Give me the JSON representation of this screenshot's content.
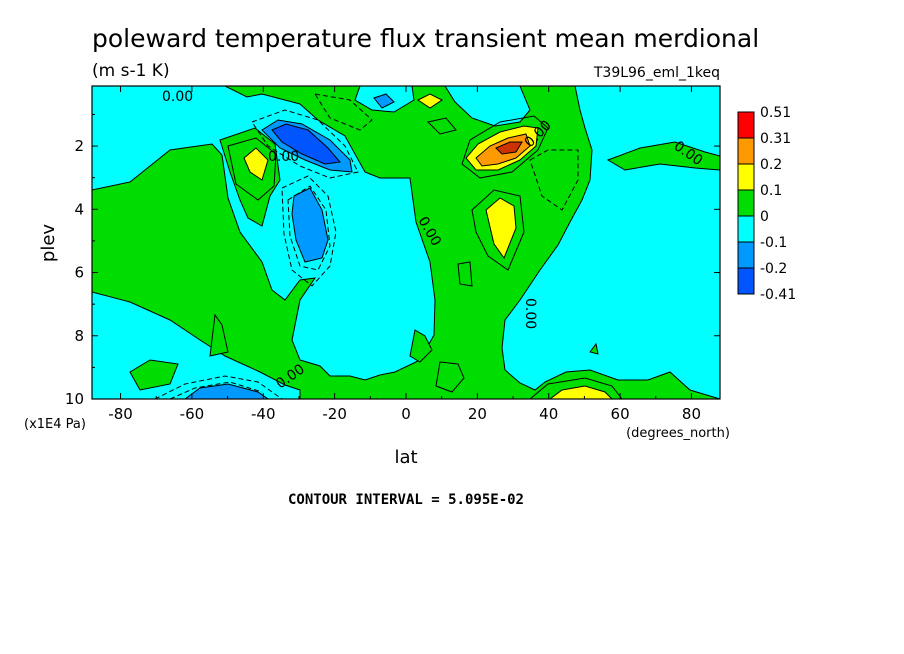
{
  "chart_data": {
    "type": "heatmap",
    "title": "poleward temperature flux transient mean merdional",
    "subtitle": "(m s-1 K)",
    "experiment": "T39L96_eml_1keq",
    "xlabel": "lat",
    "xunits": "(degrees_north)",
    "ylabel": "plev",
    "yunits": "(x1E4 Pa)",
    "xlim": [
      -88,
      88
    ],
    "ylim": [
      10,
      0.1
    ],
    "xticks": [
      "-80",
      "-60",
      "-40",
      "-20",
      "0",
      "20",
      "40",
      "60",
      "80"
    ],
    "yticks": [
      "2",
      "4",
      "6",
      "8",
      "10"
    ],
    "footer": "CONTOUR INTERVAL = 5.095E-02",
    "contour_labels": [
      "0.00",
      "0.00",
      "0.00",
      "0.00",
      "0.00",
      "0.00",
      "0.00"
    ],
    "colorbar": {
      "labels": [
        "0.51",
        "0.31",
        "0.2",
        "0.1",
        "0",
        "-0.1",
        "-0.2",
        "-0.41"
      ],
      "colors": [
        "#ff0000",
        "#ff9900",
        "#ffff00",
        "#00dd00",
        "#00ffff",
        "#0099ff",
        "#0055ff"
      ]
    },
    "levels": [
      -0.41,
      -0.2,
      -0.1,
      0,
      0.1,
      0.2,
      0.31,
      0.51
    ],
    "features": [
      {
        "lat": -28,
        "plev": 2.0,
        "value": -0.25
      },
      {
        "lat": -26,
        "plev": 4.5,
        "value": -0.15
      },
      {
        "lat": -48,
        "plev": 2.5,
        "value": 0.12
      },
      {
        "lat": 28,
        "plev": 2.0,
        "value": 0.45
      },
      {
        "lat": 27,
        "plev": 4.2,
        "value": 0.15
      },
      {
        "lat": -52,
        "plev": 9.9,
        "value": -0.15
      },
      {
        "lat": 50,
        "plev": 9.9,
        "value": 0.15
      },
      {
        "lat": 7,
        "plev": 0.5,
        "value": 0.12
      },
      {
        "lat": -5,
        "plev": 0.5,
        "value": -0.12
      },
      {
        "lat": -50,
        "plev": 4.5,
        "value": -0.07
      }
    ]
  }
}
